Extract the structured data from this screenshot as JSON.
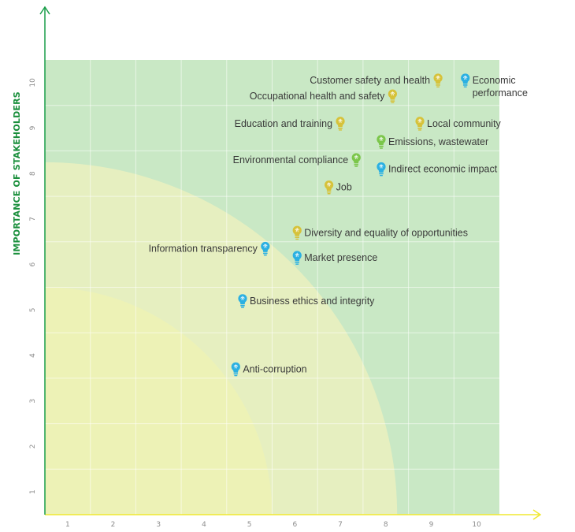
{
  "chart_data": {
    "type": "scatter",
    "title": "",
    "xlabel": "",
    "ylabel": "IMPORTANCE OF STAKEHOLDERS",
    "xlim": [
      0.5,
      10.5
    ],
    "ylim": [
      0.5,
      10.5
    ],
    "x_ticks": [
      1,
      2,
      3,
      4,
      5,
      6,
      7,
      8,
      9,
      10
    ],
    "y_ticks": [
      1,
      2,
      3,
      4,
      5,
      6,
      7,
      8,
      9,
      10
    ],
    "grid": true,
    "legend": "none",
    "zones": [
      {
        "radius": 5.0,
        "color": "#edf2b6"
      },
      {
        "radius": 7.75,
        "color": "#e6efc0"
      },
      {
        "fill": "#c9e8c5"
      }
    ],
    "colors": {
      "axis_x": "#f0e830",
      "axis_y": "#1a9e4a",
      "ylabel": "#1a8f3c",
      "gold": "#d6c23a",
      "green": "#7bc64a",
      "blue": "#2bb0e2"
    },
    "points": [
      {
        "label": "Customer safety and health",
        "x": 9.15,
        "y": 10.05,
        "color": "gold",
        "label_side": "left"
      },
      {
        "label": "Economic\nperformance",
        "x": 9.75,
        "y": 10.05,
        "color": "blue",
        "label_side": "right"
      },
      {
        "label": "Occupational health and safety",
        "x": 8.15,
        "y": 9.7,
        "color": "gold",
        "label_side": "left"
      },
      {
        "label": "Education and training",
        "x": 7.0,
        "y": 9.1,
        "color": "gold",
        "label_side": "left"
      },
      {
        "label": "Local community",
        "x": 8.75,
        "y": 9.1,
        "color": "gold",
        "label_side": "right"
      },
      {
        "label": "Emissions, wastewater",
        "x": 7.9,
        "y": 8.7,
        "color": "green",
        "label_side": "right"
      },
      {
        "label": "Environmental compliance",
        "x": 7.35,
        "y": 8.3,
        "color": "green",
        "label_side": "left"
      },
      {
        "label": "Indirect economic impact",
        "x": 7.9,
        "y": 8.1,
        "color": "blue",
        "label_side": "right"
      },
      {
        "label": "Job",
        "x": 6.75,
        "y": 7.7,
        "color": "gold",
        "label_side": "right"
      },
      {
        "label": "Diversity and equality of opportunities",
        "x": 6.05,
        "y": 6.7,
        "color": "gold",
        "label_side": "right"
      },
      {
        "label": "Information transparency",
        "x": 5.35,
        "y": 6.35,
        "color": "blue",
        "label_side": "left"
      },
      {
        "label": "Market presence",
        "x": 6.05,
        "y": 6.15,
        "color": "blue",
        "label_side": "right"
      },
      {
        "label": "Business ethics and integrity",
        "x": 4.85,
        "y": 5.2,
        "color": "blue",
        "label_side": "right"
      },
      {
        "label": "Anti-corruption",
        "x": 4.7,
        "y": 3.7,
        "color": "blue",
        "label_side": "right"
      }
    ]
  }
}
